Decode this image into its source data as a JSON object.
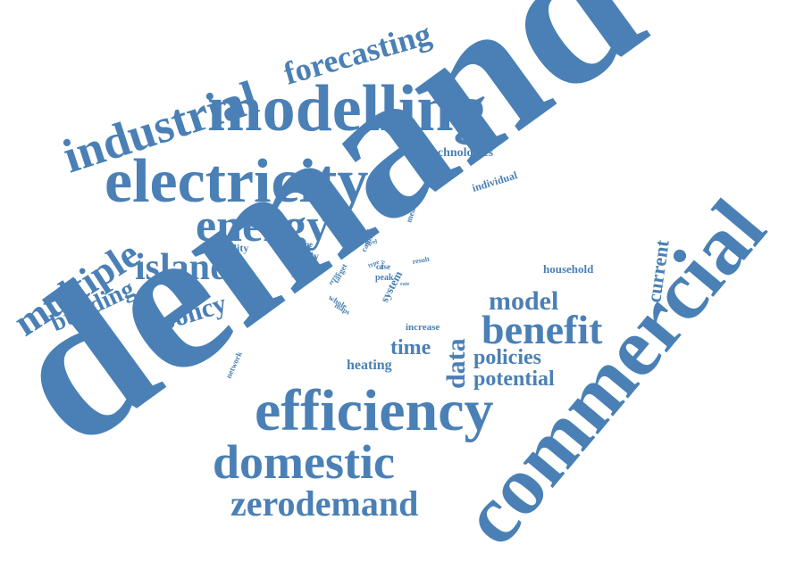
{
  "color": "#4a80b5",
  "words": [
    "demand",
    "commercial",
    "efficiency",
    "modelling",
    "electricity",
    "industrial",
    "domestic",
    "energy",
    "zerodemand",
    "island",
    "multiple",
    "benefit",
    "forecasting",
    "model",
    "building",
    "policy",
    "time",
    "data",
    "policies",
    "potential",
    "heating",
    "current",
    "technologies",
    "household",
    "individual",
    "variability",
    "study",
    "increase",
    "change",
    "annual",
    "survey",
    "supply",
    "capture",
    "measure",
    "case",
    "peak",
    "system",
    "whole",
    "network",
    "target",
    "error",
    "type",
    "level",
    "result",
    "maps",
    "rate",
    "fuel"
  ]
}
